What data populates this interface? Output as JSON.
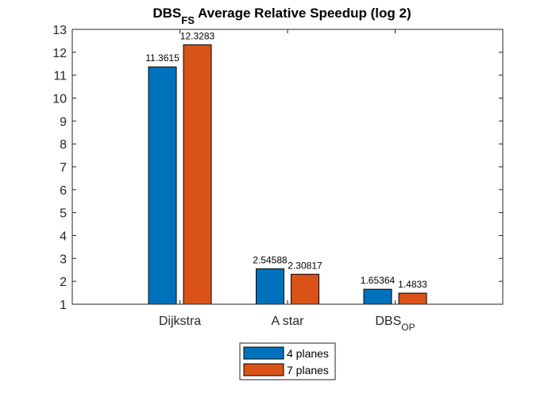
{
  "chart_data": {
    "type": "bar",
    "title": {
      "prefix": "DBS",
      "subscript": "FS",
      "suffix": " Average Relative Speedup (log 2)"
    },
    "categories": [
      {
        "main": "Dijkstra",
        "sub": ""
      },
      {
        "main": "A star",
        "sub": ""
      },
      {
        "main": "DBS",
        "sub": "OP"
      }
    ],
    "series": [
      {
        "name": "4 planes",
        "color": "#0072BD",
        "values": [
          11.3615,
          2.54588,
          1.65364
        ],
        "labels": [
          "11.3615",
          "2.54588",
          "1.65364"
        ]
      },
      {
        "name": "7 planes",
        "color": "#D95319",
        "values": [
          12.3283,
          2.30817,
          1.4833
        ],
        "labels": [
          "12.3283",
          "2.30817",
          "1.4833"
        ]
      }
    ],
    "ylim": [
      1,
      13
    ],
    "yticks": [
      1,
      2,
      3,
      4,
      5,
      6,
      7,
      8,
      9,
      10,
      11,
      12,
      13
    ],
    "xlabel": "",
    "ylabel": "",
    "grid": false,
    "legend_position": "bottom-outside"
  }
}
